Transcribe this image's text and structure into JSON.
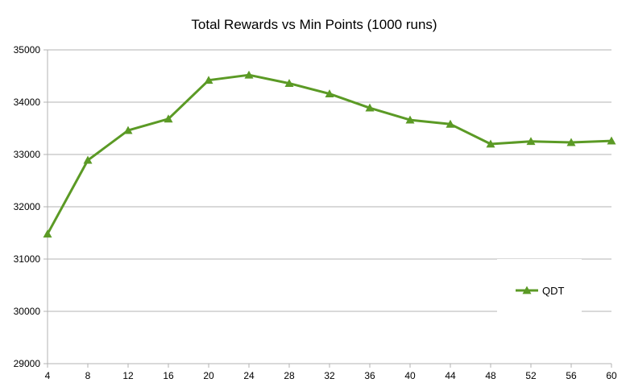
{
  "chart_data": {
    "type": "line",
    "title": "Total Rewards vs Min Points (1000 runs)",
    "xlabel": "",
    "ylabel": "",
    "x": [
      4,
      8,
      12,
      16,
      20,
      24,
      28,
      32,
      36,
      40,
      44,
      48,
      52,
      56,
      60
    ],
    "series": [
      {
        "name": "QDT",
        "color": "#5b9a25",
        "marker": "triangle",
        "values": [
          31480,
          32890,
          33460,
          33680,
          34420,
          34520,
          34360,
          34160,
          33890,
          33660,
          33580,
          33200,
          33250,
          33230,
          33260
        ]
      }
    ],
    "ylim": [
      29000,
      35000
    ],
    "y_ticks": [
      29000,
      30000,
      31000,
      32000,
      33000,
      34000,
      35000
    ],
    "x_ticks": [
      4,
      8,
      12,
      16,
      20,
      24,
      28,
      32,
      36,
      40,
      44,
      48,
      52,
      56,
      60
    ],
    "grid": "horizontal",
    "legend_position": "right",
    "colors": {
      "grid": "#b3b3b3",
      "axis": "#b3b3b3",
      "text": "#000000"
    }
  }
}
